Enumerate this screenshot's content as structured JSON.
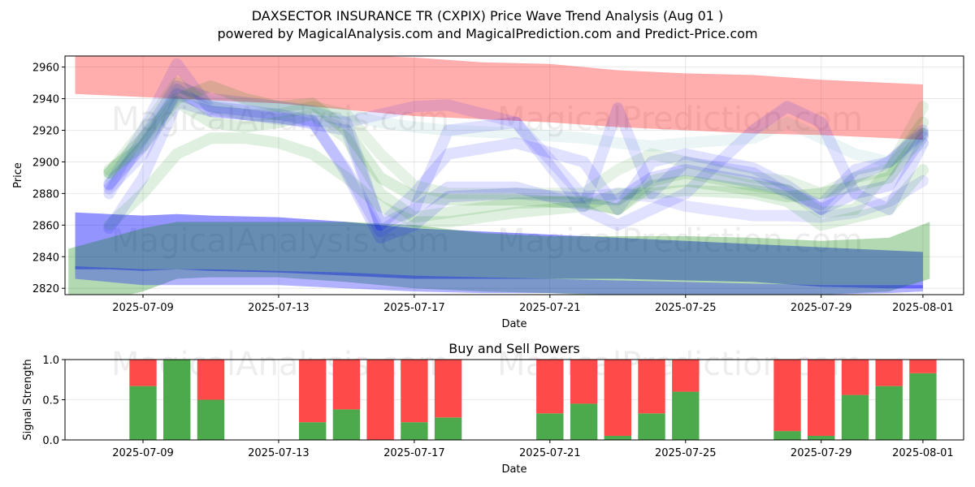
{
  "title_line1": "DAXSECTOR INSURANCE TR (CXPIX) Price Wave Trend Analysis (Aug 01 )",
  "title_line2": "powered by MagicalAnalysis.com and MagicalPrediction.com and Predict-Price.com",
  "watermarks": [
    "MagicalAnalysis.com",
    "MagicalPrediction.com"
  ],
  "chart_data": [
    {
      "type": "area",
      "name": "price-wave-chart",
      "xlabel": "Date",
      "ylabel": "Price",
      "ylim": [
        2816,
        2967
      ],
      "xlim": [
        "2025-07-06.7",
        "2025-08-02.2"
      ],
      "grid": true,
      "x_tick_labels": [
        "2025-07-09",
        "2025-07-13",
        "2025-07-17",
        "2025-07-21",
        "2025-07-25",
        "2025-07-29",
        "2025-08-01"
      ],
      "y_tick_labels": [
        "2820",
        "2840",
        "2860",
        "2880",
        "2900",
        "2920",
        "2940",
        "2960"
      ],
      "colors": {
        "red": "#ff0000",
        "blue": "#0000ff",
        "green": "#008000"
      },
      "bands": [
        {
          "name": "red-upper-band",
          "color": "red",
          "opacity": 0.32,
          "x": [
            7.0,
            9,
            11,
            13,
            15,
            17,
            19,
            21,
            23,
            25,
            27,
            29,
            31,
            32.0
          ],
          "lower": [
            2943,
            2941,
            2939,
            2937,
            2933,
            2929,
            2927,
            2925,
            2922,
            2920,
            2918,
            2917,
            2915,
            2914
          ],
          "upper": [
            2968,
            2968,
            2968,
            2968,
            2968,
            2966,
            2963,
            2962,
            2958,
            2956,
            2955,
            2952,
            2950,
            2949
          ]
        },
        {
          "name": "blue-lower-band",
          "color": "blue",
          "opacity": 0.42,
          "x": [
            7.0,
            8,
            9,
            10,
            11,
            13,
            15,
            17,
            19,
            21,
            23,
            25,
            27,
            29,
            31,
            32.0
          ],
          "lower": [
            2832,
            2832,
            2831,
            2832,
            2831,
            2830,
            2828,
            2826,
            2826,
            2826,
            2826,
            2825,
            2824,
            2821,
            2820,
            2820
          ],
          "upper": [
            2868,
            2867,
            2866,
            2867,
            2866,
            2865,
            2862,
            2858,
            2856,
            2854,
            2852,
            2850,
            2848,
            2846,
            2844,
            2843
          ]
        },
        {
          "name": "green-lower-band",
          "color": "green",
          "opacity": 0.3,
          "x": [
            6.8,
            8,
            9,
            10,
            11,
            13,
            15,
            17,
            19,
            21,
            23,
            25,
            27,
            29,
            31,
            32.2
          ],
          "lower": [
            2816,
            2813,
            2818,
            2826,
            2827,
            2827,
            2824,
            2820,
            2818,
            2817,
            2815,
            2815,
            2816,
            2816,
            2818,
            2826
          ],
          "upper": [
            2845,
            2852,
            2858,
            2862,
            2862,
            2862,
            2862,
            2860,
            2855,
            2853,
            2853,
            2853,
            2852,
            2850,
            2852,
            2862
          ]
        },
        {
          "name": "blue-lower-band-tail",
          "color": "blue",
          "opacity": 0.3,
          "x": [
            7.0,
            9,
            11,
            13,
            15,
            17,
            19,
            21,
            23,
            25,
            27,
            29,
            31,
            32.0
          ],
          "lower": [
            2826,
            2822,
            2822,
            2822,
            2820,
            2818,
            2817,
            2817,
            2816,
            2816,
            2816,
            2816,
            2817,
            2818
          ],
          "upper": [
            2834,
            2832,
            2832,
            2831,
            2830,
            2828,
            2827,
            2826,
            2825,
            2824,
            2823,
            2822,
            2822,
            2822
          ]
        }
      ],
      "waves": [
        {
          "name": "blue-wave-1",
          "color": "blue",
          "opacity": 0.14,
          "width": 14,
          "x": [
            8,
            9,
            10,
            11,
            13,
            14,
            15,
            16,
            17,
            18,
            20,
            22,
            23,
            24,
            25,
            27,
            28,
            29,
            30,
            31,
            32
          ],
          "y": [
            2886,
            2910,
            2943,
            2935,
            2930,
            2926,
            2893,
            2852,
            2860,
            2878,
            2880,
            2877,
            2876,
            2890,
            2895,
            2887,
            2882,
            2870,
            2880,
            2885,
            2916
          ]
        },
        {
          "name": "blue-wave-2",
          "color": "blue",
          "opacity": 0.12,
          "width": 14,
          "x": [
            8,
            9,
            10,
            11,
            13,
            14,
            15,
            16,
            17,
            18,
            20,
            22,
            23,
            24,
            25,
            27,
            28,
            29,
            30,
            31,
            32
          ],
          "y": [
            2883,
            2905,
            2946,
            2932,
            2928,
            2925,
            2895,
            2856,
            2870,
            2884,
            2884,
            2872,
            2934,
            2880,
            2900,
            2893,
            2880,
            2873,
            2895,
            2900,
            2920
          ]
        },
        {
          "name": "blue-wave-3",
          "color": "blue",
          "opacity": 0.12,
          "width": 14,
          "x": [
            8,
            9,
            10,
            11,
            13,
            15,
            16,
            17,
            18,
            20,
            22,
            23,
            24,
            25,
            27,
            28,
            29,
            30,
            31,
            32
          ],
          "y": [
            2858,
            2890,
            2938,
            2932,
            2928,
            2920,
            2860,
            2880,
            2905,
            2912,
            2900,
            2870,
            2900,
            2905,
            2896,
            2885,
            2870,
            2890,
            2900,
            2918
          ]
        },
        {
          "name": "blue-wave-4",
          "color": "blue",
          "opacity": 0.12,
          "width": 14,
          "x": [
            8,
            9,
            10,
            11,
            13,
            14,
            15,
            16,
            17,
            18,
            20,
            22,
            23,
            24,
            25,
            27,
            28,
            29,
            30,
            31,
            32
          ],
          "y": [
            2880,
            2915,
            2948,
            2940,
            2935,
            2932,
            2925,
            2860,
            2870,
            2920,
            2925,
            2870,
            2860,
            2870,
            2880,
            2920,
            2935,
            2925,
            2880,
            2870,
            2912
          ]
        },
        {
          "name": "blue-wave-5",
          "color": "blue",
          "opacity": 0.1,
          "width": 14,
          "x": [
            8,
            9,
            10,
            11,
            13,
            15,
            16,
            17,
            18,
            20,
            22,
            23,
            24,
            25,
            27,
            28,
            29,
            30,
            31,
            32
          ],
          "y": [
            2885,
            2920,
            2962,
            2933,
            2927,
            2925,
            2930,
            2935,
            2936,
            2925,
            2878,
            2880,
            2878,
            2872,
            2866,
            2866,
            2865,
            2868,
            2875,
            2888
          ]
        },
        {
          "name": "green-wave-1",
          "color": "green",
          "opacity": 0.14,
          "width": 14,
          "x": [
            8,
            9,
            10,
            11,
            12,
            13,
            14,
            15,
            16,
            17,
            18,
            20,
            22,
            23,
            24,
            25,
            27,
            28,
            29,
            30,
            31,
            32
          ],
          "y": [
            2893,
            2915,
            2940,
            2948,
            2940,
            2935,
            2937,
            2920,
            2890,
            2878,
            2876,
            2876,
            2874,
            2870,
            2885,
            2888,
            2882,
            2878,
            2880,
            2885,
            2890,
            2918
          ]
        },
        {
          "name": "green-wave-2",
          "color": "green",
          "opacity": 0.12,
          "width": 14,
          "x": [
            8,
            9,
            10,
            11,
            12,
            13,
            14,
            15,
            16,
            17,
            18,
            20,
            22,
            23,
            24,
            25,
            27,
            28,
            29,
            30,
            31,
            32
          ],
          "y": [
            2895,
            2910,
            2938,
            2925,
            2922,
            2925,
            2930,
            2915,
            2880,
            2865,
            2868,
            2874,
            2875,
            2870,
            2888,
            2893,
            2885,
            2882,
            2868,
            2870,
            2895,
            2925
          ]
        },
        {
          "name": "green-wave-3",
          "color": "green",
          "opacity": 0.12,
          "width": 14,
          "x": [
            8,
            9,
            10,
            11,
            12,
            13,
            14,
            15,
            16,
            17,
            18,
            20,
            22,
            23,
            24,
            25,
            27,
            28,
            29,
            30,
            31,
            32
          ],
          "y": [
            2860,
            2880,
            2905,
            2915,
            2915,
            2912,
            2905,
            2890,
            2872,
            2862,
            2862,
            2868,
            2872,
            2880,
            2880,
            2882,
            2880,
            2875,
            2860,
            2865,
            2870,
            2895
          ]
        },
        {
          "name": "green-wave-4",
          "color": "green",
          "opacity": 0.1,
          "width": 14,
          "x": [
            8,
            9,
            10,
            11,
            12,
            13,
            14,
            15,
            16,
            17,
            18,
            20,
            22,
            23,
            24,
            25,
            27,
            28,
            29,
            30,
            31,
            32
          ],
          "y": [
            2893,
            2920,
            2950,
            2935,
            2930,
            2930,
            2935,
            2930,
            2905,
            2885,
            2880,
            2880,
            2880,
            2895,
            2905,
            2900,
            2890,
            2888,
            2880,
            2890,
            2895,
            2935
          ]
        },
        {
          "name": "gray-wave-1",
          "color": "teal",
          "opacity": 0.1,
          "width": 14,
          "x": [
            8,
            9,
            10,
            11,
            13,
            15,
            16,
            17,
            18,
            20,
            22,
            23,
            24,
            25,
            27,
            28,
            29,
            30,
            31,
            32
          ],
          "y": [
            2890,
            2912,
            2945,
            2938,
            2935,
            2930,
            2925,
            2922,
            2920,
            2918,
            2915,
            2912,
            2910,
            2912,
            2915,
            2925,
            2915,
            2905,
            2900,
            2912
          ]
        }
      ],
      "wave_colors": {
        "teal": "#40a0a0"
      }
    },
    {
      "type": "bar",
      "name": "buy-sell-power-chart",
      "title": "Buy and Sell Powers",
      "xlabel": "Date",
      "ylabel": "Signal Strength",
      "ylim": [
        0,
        1.0
      ],
      "xlim": [
        "2025-07-06.7",
        "2025-08-02.2"
      ],
      "grid": true,
      "x_tick_labels": [
        "2025-07-09",
        "2025-07-13",
        "2025-07-17",
        "2025-07-21",
        "2025-07-25",
        "2025-07-29",
        "2025-08-01"
      ],
      "y_tick_labels": [
        "0.0",
        "0.5",
        "1.0"
      ],
      "colors": {
        "buy": "#4caa4c",
        "sell": "#ff4a4a"
      },
      "bars": [
        {
          "date": "2025-07-09",
          "buy": 0.67
        },
        {
          "date": "2025-07-10",
          "buy": 1.0
        },
        {
          "date": "2025-07-11",
          "buy": 0.5
        },
        {
          "date": "2025-07-14",
          "buy": 0.22
        },
        {
          "date": "2025-07-15",
          "buy": 0.38
        },
        {
          "date": "2025-07-16",
          "buy": 0.0
        },
        {
          "date": "2025-07-17",
          "buy": 0.22
        },
        {
          "date": "2025-07-18",
          "buy": 0.28
        },
        {
          "date": "2025-07-21",
          "buy": 0.33
        },
        {
          "date": "2025-07-22",
          "buy": 0.45
        },
        {
          "date": "2025-07-23",
          "buy": 0.05
        },
        {
          "date": "2025-07-24",
          "buy": 0.33
        },
        {
          "date": "2025-07-25",
          "buy": 0.6
        },
        {
          "date": "2025-07-28",
          "buy": 0.11
        },
        {
          "date": "2025-07-29",
          "buy": 0.05
        },
        {
          "date": "2025-07-30",
          "buy": 0.56
        },
        {
          "date": "2025-07-31",
          "buy": 0.67
        },
        {
          "date": "2025-08-01",
          "buy": 0.83
        }
      ]
    }
  ]
}
